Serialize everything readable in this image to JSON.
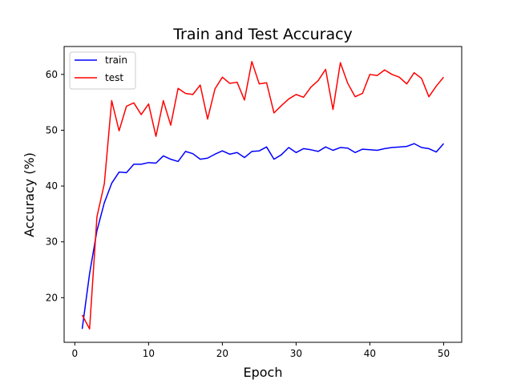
{
  "chart_data": {
    "type": "line",
    "title": "Train and Test Accuracy",
    "xlabel": "Epoch",
    "ylabel": "Accuracy (%)",
    "xlim": [
      -1.45,
      52.45
    ],
    "ylim": [
      12.0,
      65.0
    ],
    "xticks": [
      0,
      10,
      20,
      30,
      40,
      50
    ],
    "yticks": [
      20,
      30,
      40,
      50,
      60
    ],
    "grid": false,
    "legend_position": "top-left",
    "x": [
      1,
      2,
      3,
      4,
      5,
      6,
      7,
      8,
      9,
      10,
      11,
      12,
      13,
      14,
      15,
      16,
      17,
      18,
      19,
      20,
      21,
      22,
      23,
      24,
      25,
      26,
      27,
      28,
      29,
      30,
      31,
      32,
      33,
      34,
      35,
      36,
      37,
      38,
      39,
      40,
      41,
      42,
      43,
      44,
      45,
      46,
      47,
      48,
      49,
      50
    ],
    "series": [
      {
        "name": "train",
        "color": "#0000ff",
        "values": [
          14.4,
          24.3,
          32.0,
          37.0,
          40.5,
          42.5,
          42.4,
          43.9,
          43.9,
          44.2,
          44.1,
          45.4,
          44.8,
          44.4,
          46.2,
          45.8,
          44.8,
          45.0,
          45.7,
          46.3,
          45.7,
          46.0,
          45.1,
          46.2,
          46.3,
          47.0,
          44.8,
          45.6,
          46.9,
          46.0,
          46.7,
          46.5,
          46.2,
          47.0,
          46.4,
          46.9,
          46.8,
          46.0,
          46.6,
          46.5,
          46.4,
          46.7,
          46.9,
          47.0,
          47.1,
          47.6,
          46.9,
          46.7,
          46.1,
          47.6
        ]
      },
      {
        "name": "test",
        "color": "#ff0000",
        "values": [
          16.9,
          14.4,
          34.5,
          40.4,
          55.3,
          49.9,
          54.3,
          54.9,
          52.8,
          54.7,
          48.9,
          55.3,
          50.9,
          57.5,
          56.6,
          56.4,
          58.1,
          52.0,
          57.4,
          59.5,
          58.4,
          58.6,
          55.4,
          62.3,
          58.3,
          58.5,
          53.1,
          54.4,
          55.6,
          56.4,
          55.9,
          57.7,
          58.9,
          60.9,
          53.7,
          62.1,
          58.4,
          56.0,
          56.6,
          60.0,
          59.8,
          60.8,
          60.0,
          59.5,
          58.3,
          60.3,
          59.3,
          56.0,
          57.9,
          59.5
        ]
      }
    ]
  }
}
